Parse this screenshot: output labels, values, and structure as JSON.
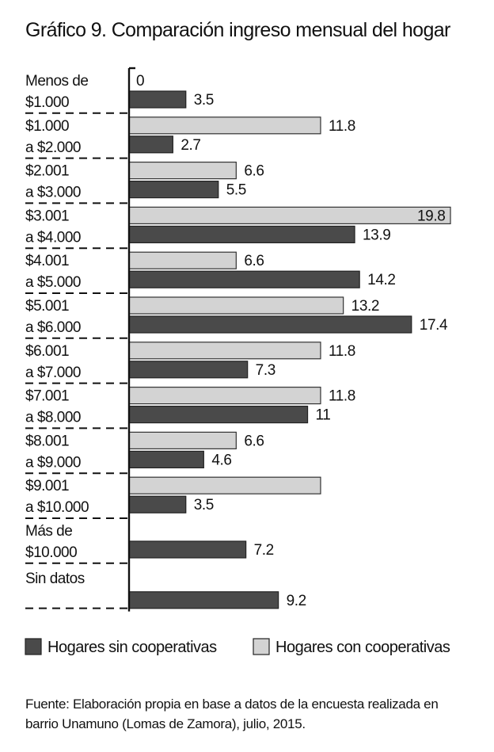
{
  "chart_data": {
    "type": "bar",
    "orientation": "horizontal",
    "title": "Gráfico 9. Comparación ingreso mensual del hogar",
    "categories": [
      [
        "Menos de",
        "$1.000"
      ],
      [
        "$1.000",
        "a $2.000"
      ],
      [
        "$2.001",
        "a $3.000"
      ],
      [
        "$3.001",
        "a $4.000"
      ],
      [
        "$4.001",
        "a $5.000"
      ],
      [
        "$5.001",
        "a $6.000"
      ],
      [
        "$6.001",
        "a $7.000"
      ],
      [
        "$7.001",
        "a $8.000"
      ],
      [
        "$8.001",
        "a $9.000"
      ],
      [
        "$9.001",
        "a $10.000"
      ],
      [
        "Más de",
        "$10.000"
      ],
      [
        "Sin datos",
        ""
      ]
    ],
    "series": [
      {
        "name": "Hogares con cooperativas",
        "color": "#d3d3d3",
        "values": [
          0,
          11.8,
          6.6,
          19.8,
          6.6,
          13.2,
          11.8,
          11.8,
          6.6,
          11.8,
          null,
          null
        ],
        "labels": [
          "0",
          "11.8",
          "6.6",
          "19.8",
          "6.6",
          "13.2",
          "11.8",
          "11.8",
          "6.6",
          "",
          "",
          ""
        ]
      },
      {
        "name": "Hogares sin cooperativas",
        "color": "#4a4a4a",
        "values": [
          3.5,
          2.7,
          5.5,
          13.9,
          14.2,
          17.4,
          7.3,
          11,
          4.6,
          3.5,
          7.2,
          9.2
        ],
        "labels": [
          "3.5",
          "2.7",
          "5.5",
          "13.9",
          "14.2",
          "17.4",
          "7.3",
          "11",
          "4.6",
          "3.5",
          "7.2",
          "9.2"
        ]
      }
    ],
    "legend": {
      "position": "bottom",
      "items": [
        {
          "label": "Hogares sin cooperativas",
          "color": "#4a4a4a"
        },
        {
          "label": "Hogares con cooperativas",
          "color": "#d3d3d3"
        }
      ]
    },
    "xlim": [
      0,
      20
    ],
    "grid": false
  },
  "source": [
    "Fuente: Elaboración propia en base a datos de la encuesta realizada en",
    "barrio Unamuno (Lomas de Zamora), julio, 2015."
  ]
}
